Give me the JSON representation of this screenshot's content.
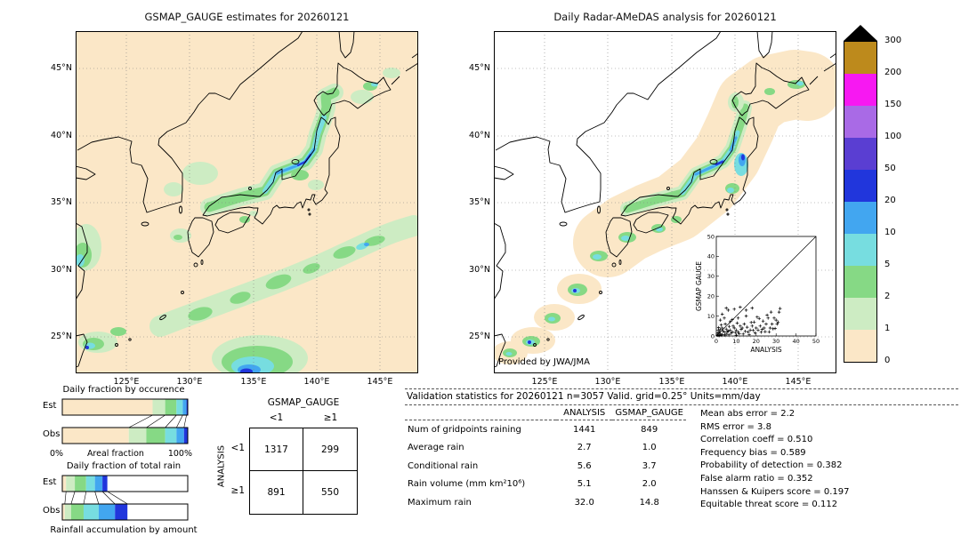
{
  "left_map": {
    "title": "GSMAP_GAUGE estimates for 20260121",
    "lat_labels": [
      "45°N",
      "40°N",
      "35°N",
      "30°N",
      "25°N"
    ],
    "lon_labels": [
      "125°E",
      "130°E",
      "135°E",
      "140°E",
      "145°E"
    ]
  },
  "right_map": {
    "title": "Daily Radar-AMeDAS analysis for 20260121",
    "credit": "Provided by JWA/JMA",
    "lat_labels": [
      "45°N",
      "40°N",
      "35°N",
      "30°N",
      "25°N"
    ],
    "lon_labels": [
      "125°E",
      "130°E",
      "135°E",
      "140°E",
      "145°E"
    ],
    "inset": {
      "xlabel": "ANALYSIS",
      "ylabel": "GSMAP GAUGE",
      "x_ticks": [
        "0",
        "10",
        "20",
        "30",
        "40",
        "50"
      ],
      "y_ticks": [
        "0",
        "10",
        "20",
        "30",
        "40",
        "50"
      ]
    }
  },
  "colorbar": {
    "tick_labels": [
      "300",
      "200",
      "150",
      "100",
      "50",
      "20",
      "10",
      "5",
      "2",
      "1",
      "0"
    ],
    "segment_colors_top_to_bottom": [
      "#bd8a1c",
      "#f718f2",
      "#a96ae6",
      "#5a3ed2",
      "#2136dc",
      "#42a6f0",
      "#77dde0",
      "#86d985",
      "#cdecc3",
      "#fbe7c7"
    ]
  },
  "occurrence_panel": {
    "title": "Daily fraction by occurence",
    "rows": [
      "Est",
      "Obs"
    ],
    "axis": {
      "left": "0%",
      "center": "Areal fraction",
      "right": "100%"
    },
    "est_segments": [
      {
        "c": "#fbe7c7",
        "p": 72
      },
      {
        "c": "#cdecc3",
        "p": 10
      },
      {
        "c": "#86d985",
        "p": 9
      },
      {
        "c": "#77dde0",
        "p": 5
      },
      {
        "c": "#42a6f0",
        "p": 3
      },
      {
        "c": "#2136dc",
        "p": 1
      }
    ],
    "obs_segments": [
      {
        "c": "#fbe7c7",
        "p": 53
      },
      {
        "c": "#cdecc3",
        "p": 14
      },
      {
        "c": "#86d985",
        "p": 15
      },
      {
        "c": "#77dde0",
        "p": 9
      },
      {
        "c": "#42a6f0",
        "p": 6
      },
      {
        "c": "#2136dc",
        "p": 3
      }
    ]
  },
  "totalrain_panel": {
    "title": "Daily fraction of total rain",
    "rows": [
      "Est",
      "Obs"
    ],
    "est_segments": [
      {
        "c": "#fbe7c7",
        "p": 3
      },
      {
        "c": "#cdecc3",
        "p": 7
      },
      {
        "c": "#86d985",
        "p": 9
      },
      {
        "c": "#77dde0",
        "p": 7
      },
      {
        "c": "#42a6f0",
        "p": 6
      },
      {
        "c": "#2136dc",
        "p": 4
      },
      {
        "c": "#ffffff",
        "p": 64
      }
    ],
    "obs_segments": [
      {
        "c": "#fbe7c7",
        "p": 2
      },
      {
        "c": "#cdecc3",
        "p": 5
      },
      {
        "c": "#86d985",
        "p": 10
      },
      {
        "c": "#77dde0",
        "p": 12
      },
      {
        "c": "#42a6f0",
        "p": 13
      },
      {
        "c": "#2136dc",
        "p": 10
      },
      {
        "c": "#ffffff",
        "p": 48
      }
    ]
  },
  "accumulation_label": "Rainfall accumulation by amount",
  "contingency": {
    "title": "GSMAP_GAUGE",
    "col_labels": [
      "<1",
      "≥1"
    ],
    "row_axis_label": "ANALYSIS",
    "row_labels": [
      "<1",
      "≥1"
    ],
    "values": [
      [
        "1317",
        "299"
      ],
      [
        "891",
        "550"
      ]
    ]
  },
  "stats": {
    "title": "Validation statistics for 20260121  n=3057 Valid. grid=0.25° Units=mm/day",
    "columns": [
      "ANALYSIS",
      "GSMAP_GAUGE"
    ],
    "rows": [
      {
        "label": "Num of gridpoints raining",
        "analysis": "1441",
        "gsmap_gauge": "849"
      },
      {
        "label": "Average rain",
        "analysis": "2.7",
        "gsmap_gauge": "1.0"
      },
      {
        "label": "Conditional rain",
        "analysis": "5.6",
        "gsmap_gauge": "3.7"
      },
      {
        "label": "Rain volume (mm km²10⁶)",
        "analysis": "5.1",
        "gsmap_gauge": "2.0"
      },
      {
        "label": "Maximum rain",
        "analysis": "32.0",
        "gsmap_gauge": "14.8"
      }
    ],
    "side_stats": [
      {
        "label": "Mean abs error",
        "value": "2.2"
      },
      {
        "label": "RMS error",
        "value": "3.8"
      },
      {
        "label": "Correlation coeff",
        "value": "0.510"
      },
      {
        "label": "Frequency bias",
        "value": "0.589"
      },
      {
        "label": "Probability of detection",
        "value": "0.382"
      },
      {
        "label": "False alarm ratio",
        "value": "0.352"
      },
      {
        "label": "Hanssen & Kuipers score",
        "value": "0.197"
      },
      {
        "label": "Equitable threat score",
        "value": "0.112"
      }
    ]
  },
  "chart_data": [
    {
      "type": "heatmap",
      "title": "GSMAP_GAUGE estimates for 20260121",
      "x_ticks": [
        "125°E",
        "130°E",
        "135°E",
        "140°E",
        "145°E"
      ],
      "y_ticks": [
        "45°N",
        "40°N",
        "35°N",
        "30°N",
        "25°N"
      ],
      "units": "mm/day",
      "color_levels": [
        0,
        1,
        2,
        5,
        10,
        20,
        50,
        100,
        150,
        200,
        300
      ]
    },
    {
      "type": "heatmap",
      "title": "Daily Radar-AMeDAS analysis for 20260121",
      "x_ticks": [
        "125°E",
        "130°E",
        "135°E",
        "140°E",
        "145°E"
      ],
      "y_ticks": [
        "45°N",
        "40°N",
        "35°N",
        "30°N",
        "25°N"
      ],
      "units": "mm/day",
      "color_levels": [
        0,
        1,
        2,
        5,
        10,
        20,
        50,
        100,
        150,
        200,
        300
      ],
      "credit": "Provided by JWA/JMA"
    },
    {
      "type": "scatter",
      "title": "GSMAP GAUGE vs ANALYSIS (inset)",
      "xlabel": "ANALYSIS",
      "ylabel": "GSMAP GAUGE",
      "xlim": [
        0,
        50
      ],
      "ylim": [
        0,
        50
      ],
      "diagonal": true,
      "points": [
        [
          0.5,
          0.3
        ],
        [
          0.8,
          1.5
        ],
        [
          1,
          0.5
        ],
        [
          1,
          3
        ],
        [
          1.2,
          4.2
        ],
        [
          1.5,
          2
        ],
        [
          1.5,
          0.2
        ],
        [
          2,
          1
        ],
        [
          2,
          3.2
        ],
        [
          2,
          8
        ],
        [
          2.3,
          0.4
        ],
        [
          2.5,
          5.5
        ],
        [
          3,
          0.8
        ],
        [
          3,
          4
        ],
        [
          3,
          11
        ],
        [
          3.4,
          2.6
        ],
        [
          4,
          2
        ],
        [
          4,
          9
        ],
        [
          4.2,
          0.5
        ],
        [
          4.5,
          6
        ],
        [
          5,
          1
        ],
        [
          5,
          3.5
        ],
        [
          5,
          14
        ],
        [
          5.5,
          2.2
        ],
        [
          6,
          2.5
        ],
        [
          6,
          13
        ],
        [
          6.3,
          0.6
        ],
        [
          6.5,
          4.8
        ],
        [
          7,
          3
        ],
        [
          7,
          7.2
        ],
        [
          7.5,
          1.4
        ],
        [
          8,
          2
        ],
        [
          8,
          8.2
        ],
        [
          8.5,
          5
        ],
        [
          9,
          4
        ],
        [
          9,
          13.5
        ],
        [
          9.5,
          1.8
        ],
        [
          10,
          0.4
        ],
        [
          10,
          3
        ],
        [
          10.5,
          6.5
        ],
        [
          11,
          2
        ],
        [
          11,
          9
        ],
        [
          11.5,
          1.1
        ],
        [
          12,
          5
        ],
        [
          12,
          14.5
        ],
        [
          12.5,
          3.3
        ],
        [
          13,
          4
        ],
        [
          13.5,
          1
        ],
        [
          14,
          6
        ],
        [
          14.5,
          2.3
        ],
        [
          15,
          10
        ],
        [
          15,
          13
        ],
        [
          15.5,
          4.4
        ],
        [
          16,
          2
        ],
        [
          16.5,
          0.6
        ],
        [
          17,
          3
        ],
        [
          17.5,
          6.8
        ],
        [
          18,
          5
        ],
        [
          18,
          14
        ],
        [
          18.5,
          2.8
        ],
        [
          19,
          7
        ],
        [
          19.5,
          1.6
        ],
        [
          20,
          4
        ],
        [
          20.5,
          9.5
        ],
        [
          21,
          3
        ],
        [
          21.5,
          8.8
        ],
        [
          22,
          5
        ],
        [
          22.5,
          1.9
        ],
        [
          23,
          3.4
        ],
        [
          23.5,
          7.5
        ],
        [
          24,
          4
        ],
        [
          24.5,
          2.2
        ],
        [
          25,
          6
        ],
        [
          25.5,
          10.5
        ],
        [
          26,
          9
        ],
        [
          26.5,
          2.1
        ],
        [
          27,
          4
        ],
        [
          27.5,
          12
        ],
        [
          28,
          6
        ],
        [
          28.5,
          3.6
        ],
        [
          29,
          9
        ],
        [
          29.5,
          3.8
        ],
        [
          30,
          8
        ],
        [
          30.5,
          6
        ],
        [
          31,
          7
        ],
        [
          31.5,
          12
        ],
        [
          32,
          13.8
        ]
      ]
    },
    {
      "type": "table",
      "title": "Contingency table (gridpoint counts)",
      "columns": [
        "GSMAP_GAUGE <1",
        "GSMAP_GAUGE ≥1"
      ],
      "rows": [
        "ANALYSIS <1",
        "ANALYSIS ≥1"
      ],
      "values": [
        [
          1317,
          299
        ],
        [
          891,
          550
        ]
      ]
    },
    {
      "type": "table",
      "title": "Validation statistics for 20260121",
      "columns": [
        "ANALYSIS",
        "GSMAP_GAUGE"
      ],
      "rows": [
        [
          "Num of gridpoints raining",
          1441,
          849
        ],
        [
          "Average rain",
          2.7,
          1.0
        ],
        [
          "Conditional rain",
          5.6,
          3.7
        ],
        [
          "Rain volume (mm km²10⁶)",
          5.1,
          2.0
        ],
        [
          "Maximum rain",
          32.0,
          14.8
        ]
      ],
      "scalars": {
        "Mean abs error": 2.2,
        "RMS error": 3.8,
        "Correlation coeff": 0.51,
        "Frequency bias": 0.589,
        "Probability of detection": 0.382,
        "False alarm ratio": 0.352,
        "Hanssen & Kuipers score": 0.197,
        "Equitable threat score": 0.112
      }
    },
    {
      "type": "bar",
      "title": "Daily fraction by occurence (stacked %, estimated from pixels)",
      "categories": [
        "Est",
        "Obs"
      ],
      "series_colors_low_to_high": [
        "#fbe7c7",
        "#cdecc3",
        "#86d985",
        "#77dde0",
        "#42a6f0",
        "#2136dc"
      ],
      "est_pct": [
        72,
        10,
        9,
        5,
        3,
        1
      ],
      "obs_pct": [
        53,
        14,
        15,
        9,
        6,
        3
      ]
    },
    {
      "type": "bar",
      "title": "Daily fraction of total rain (stacked %, estimated from pixels)",
      "categories": [
        "Est",
        "Obs"
      ],
      "est_pct": [
        3,
        7,
        9,
        7,
        6,
        4,
        64
      ],
      "obs_pct": [
        2,
        5,
        10,
        12,
        13,
        10,
        48
      ]
    }
  ]
}
